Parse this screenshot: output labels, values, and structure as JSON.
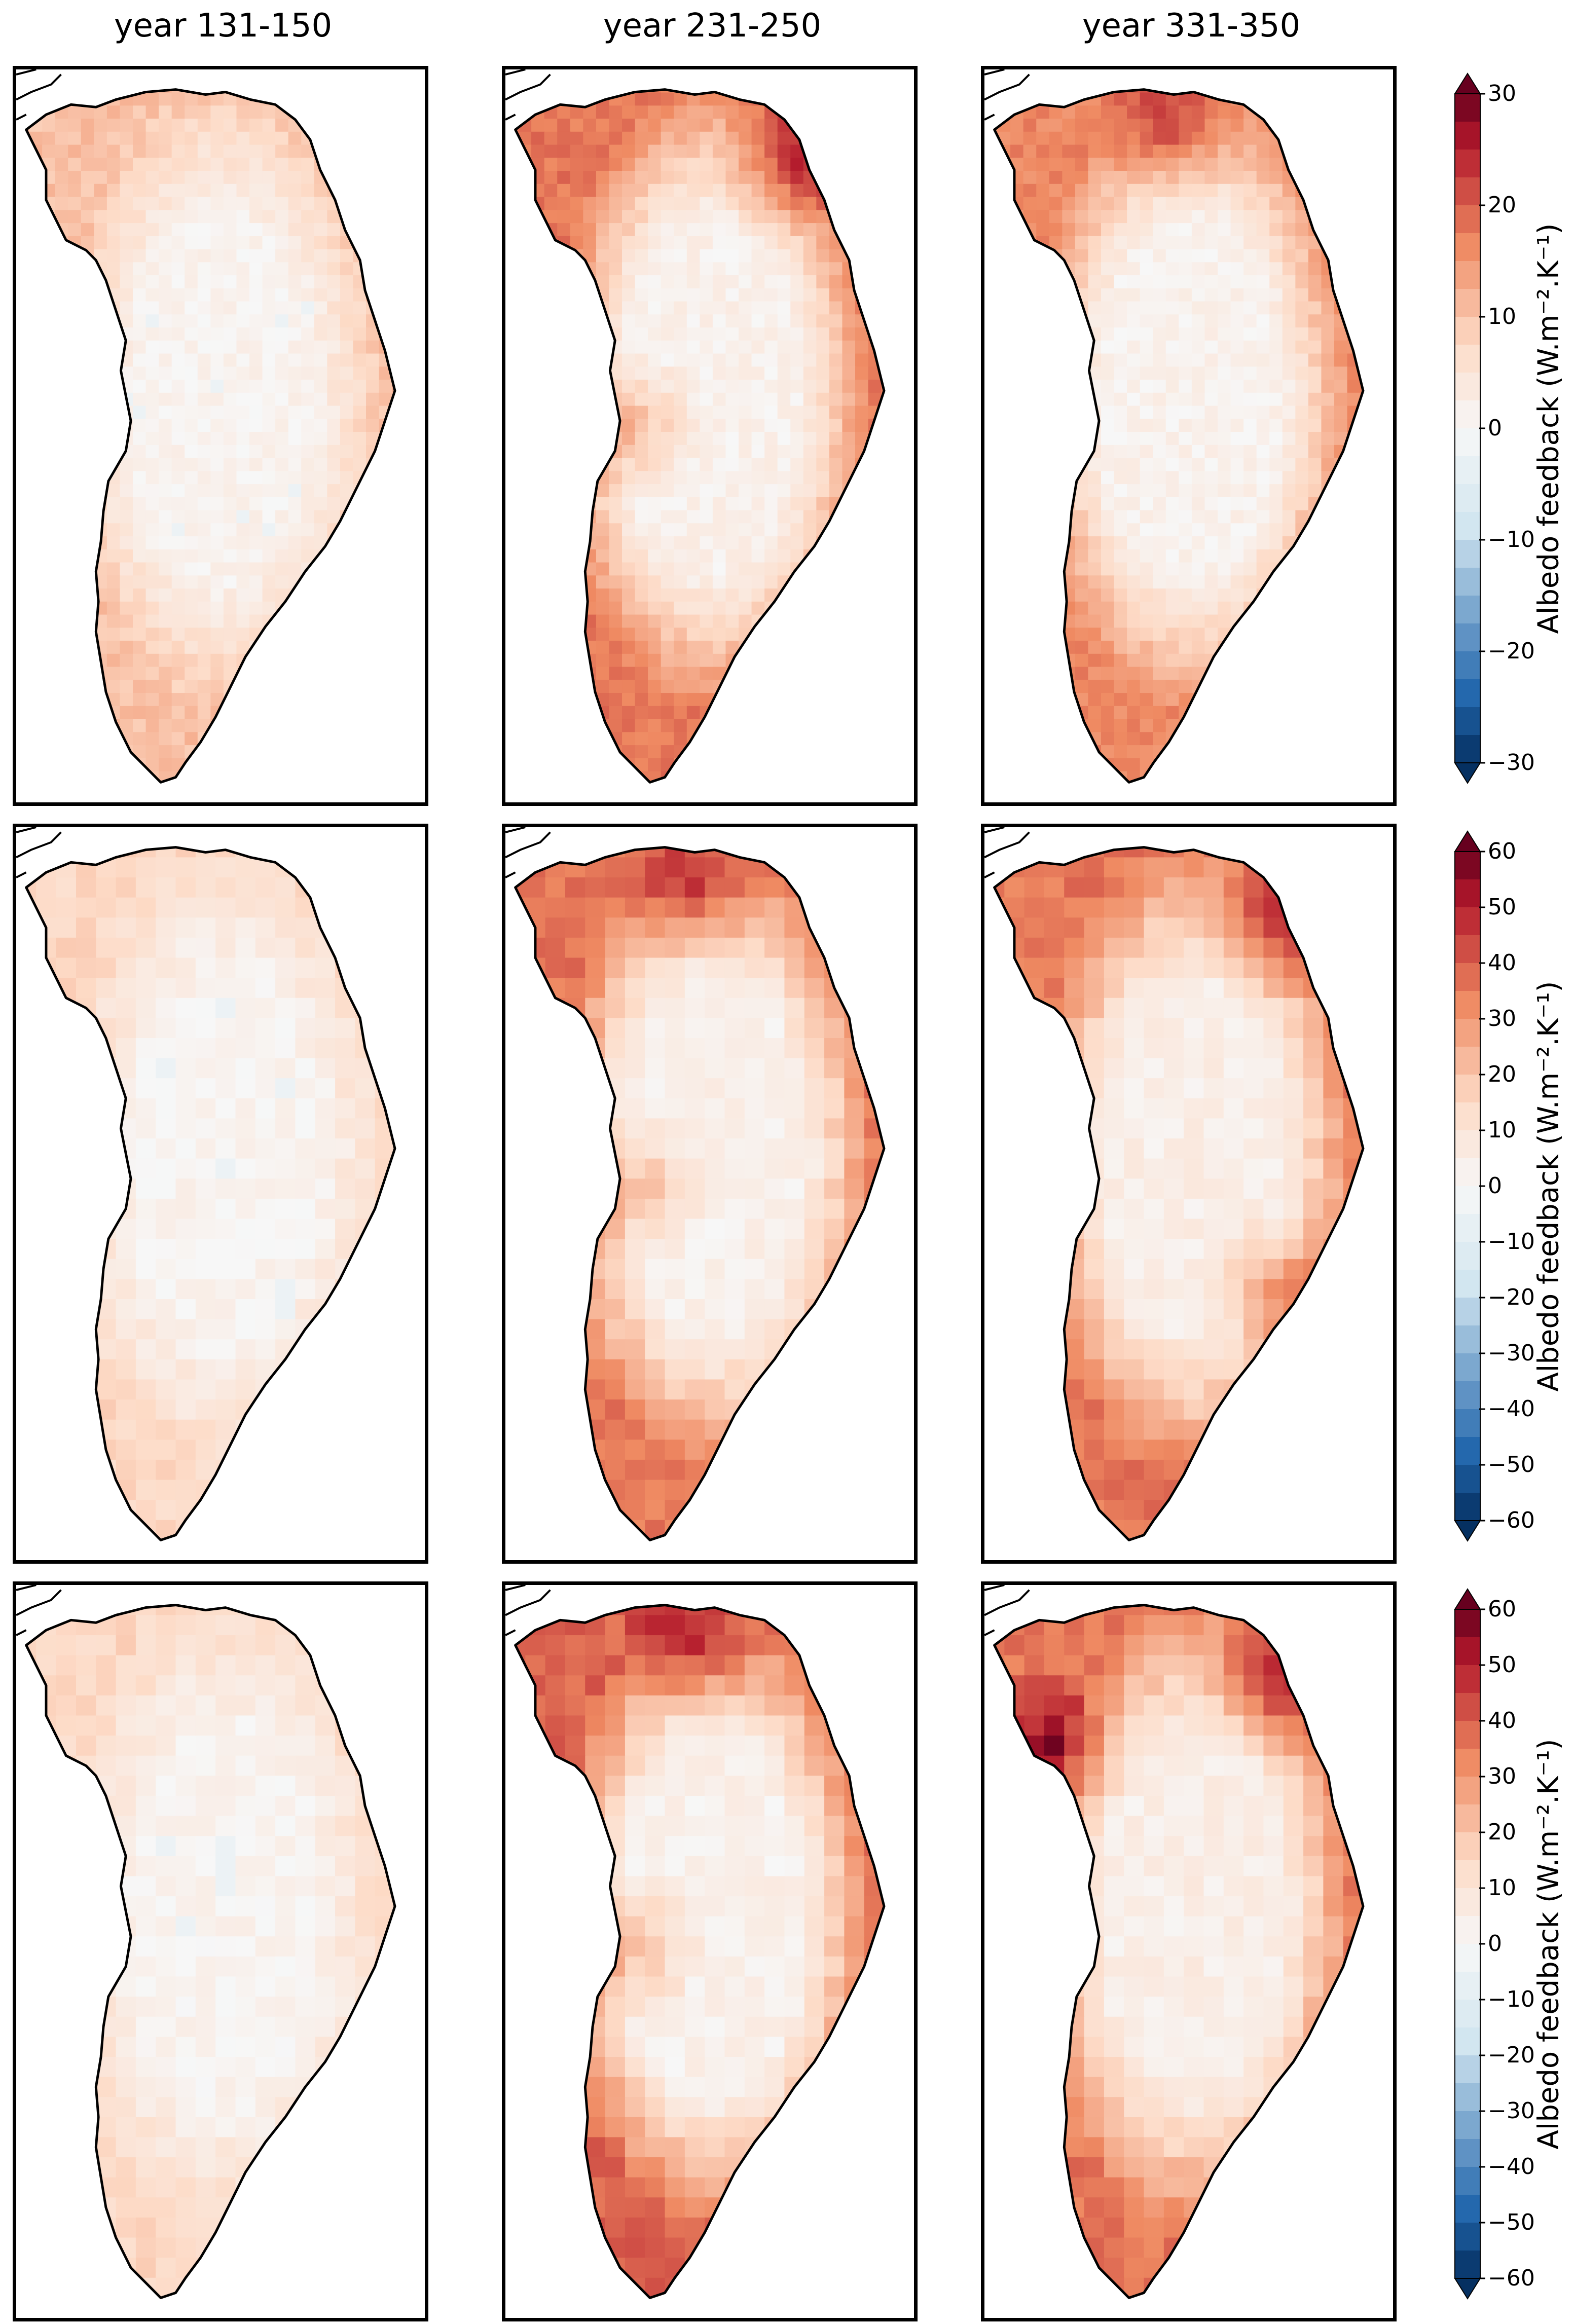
{
  "columns": [
    {
      "title": "year 131-150"
    },
    {
      "title": "year 231-250"
    },
    {
      "title": "year 331-350"
    }
  ],
  "colorbars": [
    {
      "label": "Albedo feedback (W.m$^{-2}$.K$^{-1}$)",
      "label_display": "Albedo feedback (W.m⁻².K⁻¹)",
      "ticks": [
        "30",
        "20",
        "10",
        "0",
        "−10",
        "−20",
        "−30"
      ],
      "range": [
        -30,
        30
      ]
    },
    {
      "label_display": "Albedo feedback (W.m⁻².K⁻¹)",
      "ticks": [
        "60",
        "50",
        "40",
        "30",
        "20",
        "10",
        "0",
        "−10",
        "−20",
        "−30",
        "−40",
        "−50",
        "−60"
      ],
      "range": [
        -60,
        60
      ]
    },
    {
      "label_display": "Albedo feedback (W.m⁻².K⁻¹)",
      "ticks": [
        "60",
        "50",
        "40",
        "30",
        "20",
        "10",
        "0",
        "−10",
        "−20",
        "−30",
        "−40",
        "−50",
        "−60"
      ],
      "range": [
        -60,
        60
      ]
    }
  ],
  "colormap": {
    "name": "RdBu_r",
    "positive": "#b2182b",
    "mid_positive": "#ef8a62",
    "light_positive": "#fddbc7",
    "zero": "#f7f7f7",
    "light_negative": "#d1e5f0",
    "negative": "#2166ac",
    "extreme_negative": "#053061",
    "extreme_positive": "#67001f"
  },
  "panels": [
    {
      "row": 0,
      "col": 0,
      "edge_level": 0.35,
      "interior_level": 0.04,
      "hotspots": []
    },
    {
      "row": 0,
      "col": 1,
      "edge_level": 0.6,
      "interior_level": 0.06,
      "hotspots": [
        "west",
        "northeast"
      ]
    },
    {
      "row": 0,
      "col": 2,
      "edge_level": 0.55,
      "interior_level": 0.05,
      "hotspots": [
        "north"
      ]
    },
    {
      "row": 1,
      "col": 0,
      "edge_level": 0.25,
      "interior_level": 0.03,
      "hotspots": []
    },
    {
      "row": 1,
      "col": 1,
      "edge_level": 0.6,
      "interior_level": 0.06,
      "hotspots": [
        "north",
        "west"
      ]
    },
    {
      "row": 1,
      "col": 2,
      "edge_level": 0.6,
      "interior_level": 0.08,
      "hotspots": [
        "northeast",
        "southeast"
      ]
    },
    {
      "row": 2,
      "col": 0,
      "edge_level": 0.25,
      "interior_level": 0.03,
      "hotspots": []
    },
    {
      "row": 2,
      "col": 1,
      "edge_level": 0.65,
      "interior_level": 0.06,
      "hotspots": [
        "west",
        "north"
      ]
    },
    {
      "row": 2,
      "col": 2,
      "edge_level": 0.6,
      "interior_level": 0.08,
      "hotspots": [
        "northwest",
        "northeast"
      ]
    }
  ]
}
